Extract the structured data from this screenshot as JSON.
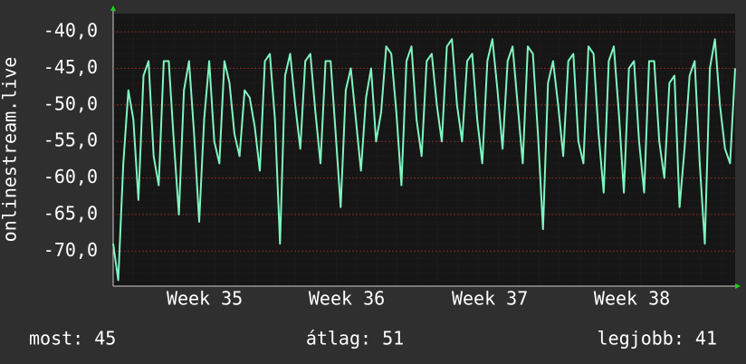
{
  "chart_data": {
    "type": "line",
    "y_label": "onlinestream.live",
    "series": [
      {
        "color": "#7ff5c0",
        "values": [
          -69,
          -74,
          -58,
          -48,
          -52,
          -63,
          -46,
          -44,
          -57,
          -61,
          -44,
          -44,
          -55,
          -65,
          -48,
          -44,
          -54,
          -66,
          -52,
          -44,
          -55,
          -58,
          -44,
          -47,
          -54,
          -57,
          -48,
          -49,
          -53,
          -59,
          -44,
          -43,
          -52,
          -69,
          -46,
          -43,
          -50,
          -56,
          -44,
          -43,
          -51,
          -58,
          -44,
          -44,
          -54,
          -64,
          -48,
          -45,
          -52,
          -59,
          -49,
          -45,
          -55,
          -51,
          -42,
          -43,
          -51,
          -61,
          -44,
          -42,
          -52,
          -57,
          -44,
          -43,
          -50,
          -55,
          -42,
          -41,
          -50,
          -55,
          -44,
          -43,
          -52,
          -58,
          -44,
          -41,
          -48,
          -56,
          -44,
          -42,
          -50,
          -58,
          -42,
          -43,
          -54,
          -67,
          -47,
          -44,
          -50,
          -57,
          -44,
          -43,
          -55,
          -58,
          -42,
          -43,
          -54,
          -62,
          -44,
          -42,
          -51,
          -62,
          -45,
          -44,
          -55,
          -62,
          -44,
          -44,
          -55,
          -60,
          -47,
          -46,
          -64,
          -56,
          -46,
          -44,
          -58,
          -69,
          -45,
          -41,
          -50,
          -56,
          -58,
          -45
        ]
      }
    ],
    "xlim": [
      0,
      123
    ],
    "xticks": [
      {
        "value": 18.1,
        "label": "Week 35"
      },
      {
        "value": 46.2,
        "label": "Week 36"
      },
      {
        "value": 74.5,
        "label": "Week 37"
      },
      {
        "value": 102.6,
        "label": "Week 38"
      }
    ],
    "ylim": [
      -74.8,
      -37.5
    ],
    "yticks": [
      {
        "value": -40,
        "label": "-40,0"
      },
      {
        "value": -45,
        "label": "-45,0"
      },
      {
        "value": -50,
        "label": "-50,0"
      },
      {
        "value": -55,
        "label": "-55,0"
      },
      {
        "value": -60,
        "label": "-60,0"
      },
      {
        "value": -65,
        "label": "-65,0"
      },
      {
        "value": -70,
        "label": "-70,0"
      }
    ],
    "grid": true,
    "footer": [
      "most: 45",
      "átlag: 51",
      "legjobb: 41"
    ]
  }
}
